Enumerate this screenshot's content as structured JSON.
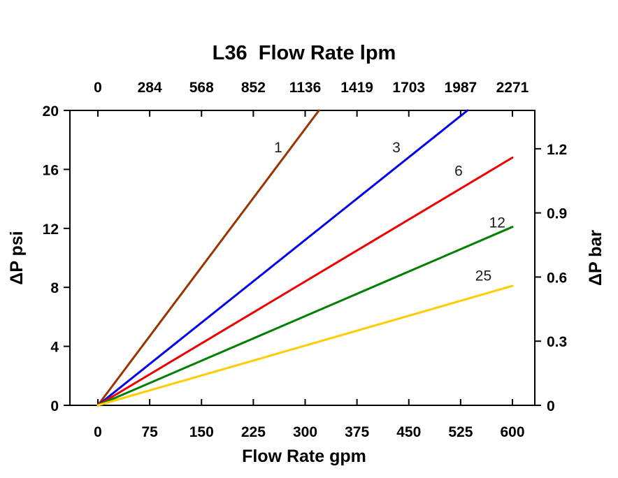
{
  "chart_data": {
    "type": "line",
    "title": "L36  Flow Rate lpm",
    "xlabel": "Flow Rate gpm",
    "ylabel_left": "ΔP psi",
    "ylabel_right": "ΔP bar",
    "x_ticks_gpm": [
      0,
      75,
      150,
      225,
      300,
      375,
      450,
      525,
      600
    ],
    "x2_ticks_lpm": [
      "0",
      "284",
      "568",
      "852",
      "1136",
      "1419",
      "1703",
      "1987",
      "2271"
    ],
    "y_ticks_psi": [
      0,
      4,
      8,
      12,
      16,
      20
    ],
    "y2_ticks_bar": [
      "0",
      "0.3",
      "0.6",
      "0.9",
      "1.2"
    ],
    "y2_tick_psi_positions": [
      0,
      4.35,
      8.7,
      13.05,
      17.4
    ],
    "xlim_gpm": [
      0,
      600
    ],
    "ylim_psi": [
      0,
      20
    ],
    "grid": false,
    "legend_position": "inline-labels",
    "frame_color": "#000000",
    "text_color": "#000000",
    "series": [
      {
        "name": "1",
        "color": "#993300",
        "points": [
          [
            0,
            0
          ],
          [
            320,
            20
          ]
        ],
        "label_at": [
          261,
          17.5
        ]
      },
      {
        "name": "3",
        "color": "#0000EE",
        "points": [
          [
            0,
            0
          ],
          [
            535,
            20
          ]
        ],
        "label_at": [
          432,
          17.5
        ]
      },
      {
        "name": "6",
        "color": "#EE0000",
        "points": [
          [
            0,
            0
          ],
          [
            600,
            16.8
          ]
        ],
        "label_at": [
          522,
          15.9
        ]
      },
      {
        "name": "12",
        "color": "#008000",
        "points": [
          [
            0,
            0
          ],
          [
            600,
            12.1
          ]
        ],
        "label_at": [
          578,
          12.4
        ]
      },
      {
        "name": "25",
        "color": "#FFCC00",
        "points": [
          [
            0,
            0
          ],
          [
            600,
            8.1
          ]
        ],
        "label_at": [
          558,
          8.8
        ]
      }
    ]
  }
}
